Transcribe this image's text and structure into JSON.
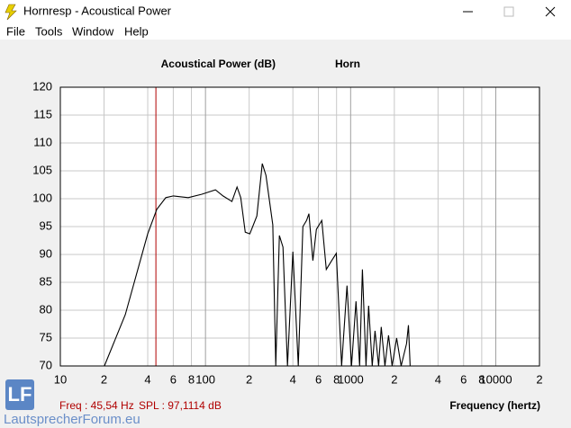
{
  "window": {
    "title": "Hornresp - Acoustical Power",
    "menu": [
      "File",
      "Tools",
      "Window",
      "Help"
    ]
  },
  "chart_data": {
    "type": "line",
    "title": "Acoustical Power (dB)",
    "subtitle": "Horn",
    "x_label": "Frequency (hertz)",
    "log_x": true,
    "grid": true,
    "color": "#000000",
    "x": [
      20.1,
      28,
      40,
      46.2,
      53.3,
      60.1,
      76,
      94.5,
      117,
      132,
      152,
      165,
      175,
      188,
      202,
      226,
      246,
      261,
      291,
      305,
      323,
      342,
      367,
      400,
      436,
      469,
      497,
      516,
      549,
      581,
      633,
      680,
      741,
      796,
      867,
      944,
      1014,
      1089,
      1153,
      1205,
      1276,
      1331,
      1409,
      1472,
      1560,
      1626,
      1722,
      1824,
      1932,
      2075,
      2228,
      2427,
      2500,
      2570
    ],
    "values": [
      70,
      79.2,
      93.7,
      98.1,
      100.2,
      100.5,
      100.2,
      100.8,
      101.6,
      100.5,
      99.5,
      102.1,
      100.2,
      94,
      93.7,
      96.9,
      106.3,
      104.2,
      95.3,
      70,
      93.4,
      91.3,
      70,
      90.5,
      70,
      95,
      96.1,
      97.3,
      88.9,
      94.5,
      96.1,
      87.3,
      88.9,
      90.2,
      70,
      84.4,
      70,
      81.6,
      70,
      87.3,
      70,
      80.8,
      70,
      76.3,
      70,
      77,
      70,
      75.5,
      70,
      75,
      70,
      74,
      77.3,
      70
    ],
    "xlim": [
      10,
      20000
    ],
    "ylim": [
      70,
      120
    ],
    "xticks": [
      10,
      {
        "value": 20,
        "label": "2"
      },
      {
        "value": 40,
        "label": "4"
      },
      {
        "value": 60,
        "label": "6"
      },
      {
        "value": 80,
        "label": "8"
      },
      100,
      {
        "value": 200,
        "label": "2"
      },
      {
        "value": 400,
        "label": "4"
      },
      {
        "value": 600,
        "label": "6"
      },
      {
        "value": 800,
        "label": "8"
      },
      1000,
      {
        "value": 2000,
        "label": "2"
      },
      {
        "value": 4000,
        "label": "4"
      },
      {
        "value": 6000,
        "label": "6"
      },
      {
        "value": 8000,
        "label": "8"
      },
      10000,
      {
        "value": 20000,
        "label": "2"
      }
    ],
    "yticks": [
      70,
      75,
      80,
      85,
      90,
      95,
      100,
      105,
      110,
      115,
      120
    ],
    "cursor_x": 45.54,
    "cursor_color": "#b00000",
    "annotations": [
      "Freq : 45,54 Hz",
      "SPL : 97,1114 dB"
    ]
  },
  "watermark": {
    "logo": "LF",
    "text": "LautsprecherForum.eu"
  }
}
